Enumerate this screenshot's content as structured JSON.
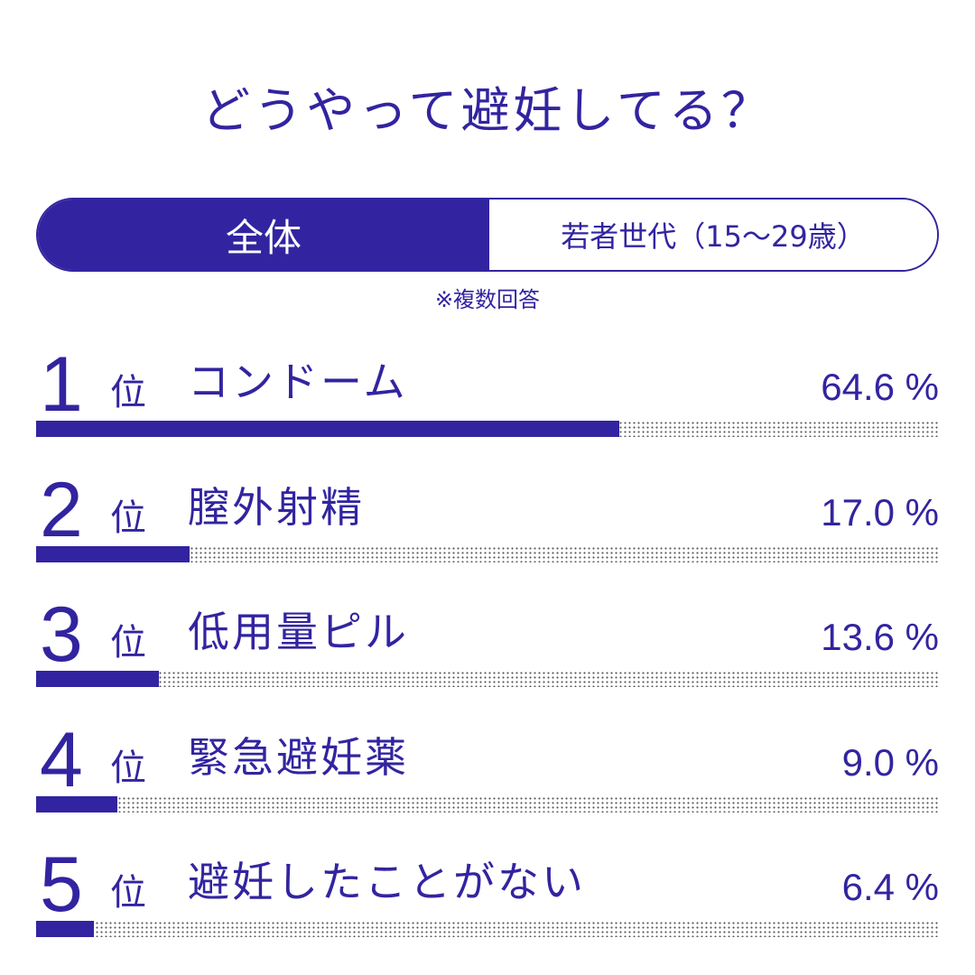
{
  "title": "どうやって避妊してる？",
  "tabs": [
    {
      "label": "全体",
      "active": true
    },
    {
      "label": "若者世代（15〜29歳）",
      "active": false
    }
  ],
  "note": "※複数回答",
  "rank_suffix": "位",
  "colors": {
    "accent": "#3224a0",
    "track_dots": "#555555",
    "background": "#ffffff"
  },
  "chart_data": {
    "type": "bar",
    "title": "どうやって避妊してる？",
    "categories": [
      "コンドーム",
      "膣外射精",
      "低用量ピル",
      "緊急避妊薬",
      "避妊したことがない"
    ],
    "values": [
      64.6,
      17.0,
      13.6,
      9.0,
      6.4
    ],
    "value_labels": [
      "64.6 %",
      "17.0 %",
      "13.6 %",
      "9.0 %",
      "6.4 %"
    ],
    "ranks": [
      "1",
      "2",
      "3",
      "4",
      "5"
    ],
    "ylim": [
      0,
      100
    ],
    "orientation": "horizontal"
  }
}
